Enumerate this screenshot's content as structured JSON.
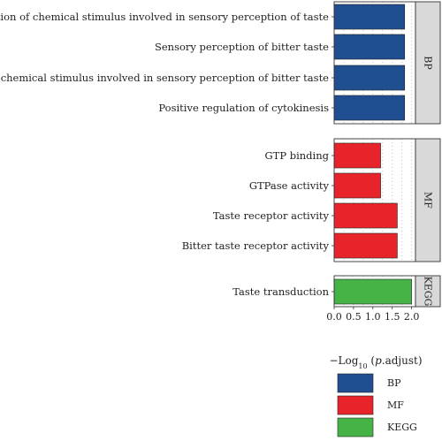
{
  "colors": {
    "BP": "#1f4e91",
    "MF": "#e8242b",
    "KEGG": "#46b347",
    "strip": "#d9d9d9",
    "panel_border": "#333333"
  },
  "chart_data": {
    "type": "bar",
    "orientation": "horizontal",
    "facet_by": "category",
    "xlabel": "−Log10 (p.adjust)",
    "xlabel_parts": {
      "prefix": "−Log",
      "sub": "10",
      "mid": " (",
      "italic": "p",
      "suffix": ".adjust)"
    },
    "xlim": [
      0,
      2.1
    ],
    "xticks": [
      "0.0",
      "0.5",
      "1.0",
      "1.5",
      "2.0"
    ],
    "xtick_values": [
      0,
      0.5,
      1.0,
      1.5,
      2.0
    ],
    "grid": "dotted",
    "legend_position": "bottom",
    "legend": [
      {
        "key": "BP",
        "label": "BP"
      },
      {
        "key": "MF",
        "label": "MF"
      },
      {
        "key": "KEGG",
        "label": "KEGG"
      }
    ],
    "panels": [
      {
        "category": "BP",
        "strip_label": "BP",
        "terms": [
          {
            "label": "Detection of chemical stimulus involved in sensory perception of taste",
            "value": 1.82
          },
          {
            "label": "Sensory perception of bitter taste",
            "value": 1.82
          },
          {
            "label": "Detection of chemical stimulus involved in sensory perception of bitter taste",
            "value": 1.82
          },
          {
            "label": "Positive regulation of cytokinesis",
            "value": 1.82
          }
        ]
      },
      {
        "category": "MF",
        "strip_label": "MF",
        "terms": [
          {
            "label": "GTP binding",
            "value": 1.2
          },
          {
            "label": "GTPase activity",
            "value": 1.2
          },
          {
            "label": "Taste receptor activity",
            "value": 1.63
          },
          {
            "label": "Bitter taste receptor activity",
            "value": 1.63
          }
        ]
      },
      {
        "category": "KEGG",
        "strip_label": "KEGG",
        "terms": [
          {
            "label": "Taste transduction",
            "value": 2.0
          }
        ]
      }
    ]
  }
}
